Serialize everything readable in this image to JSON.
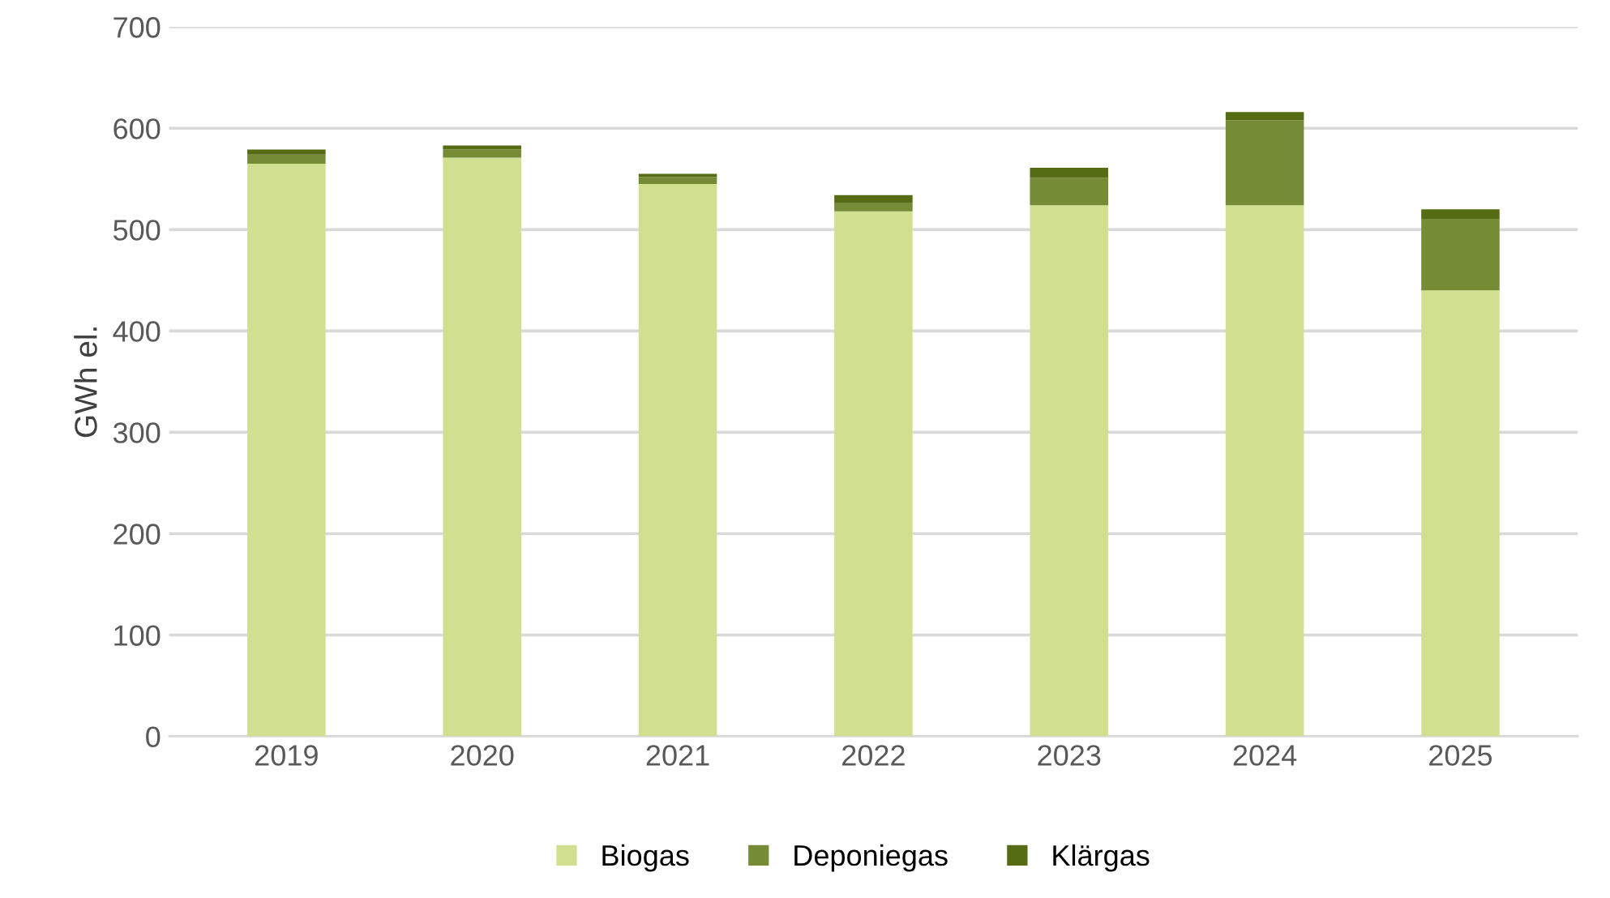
{
  "chart_data": {
    "type": "bar",
    "stacked": true,
    "ylabel": "GWh el.",
    "categories": [
      "2019",
      "2020",
      "2021",
      "2022",
      "2023",
      "2024",
      "2025"
    ],
    "series": [
      {
        "name": "Biogas",
        "color": "#d0e090",
        "values": [
          565,
          571,
          545,
          518,
          524,
          524,
          440
        ]
      },
      {
        "name": "Deponiegas",
        "color": "#768b35",
        "values": [
          9,
          8,
          7,
          8,
          27,
          84,
          70
        ]
      },
      {
        "name": "Klärgas",
        "color": "#556b14",
        "values": [
          5,
          4,
          3,
          8,
          10,
          8,
          10
        ]
      }
    ],
    "ylim": [
      0,
      700
    ],
    "yticks": [
      0,
      100,
      200,
      300,
      400,
      500,
      600,
      700
    ],
    "grid": "y",
    "legend": "bottom"
  }
}
